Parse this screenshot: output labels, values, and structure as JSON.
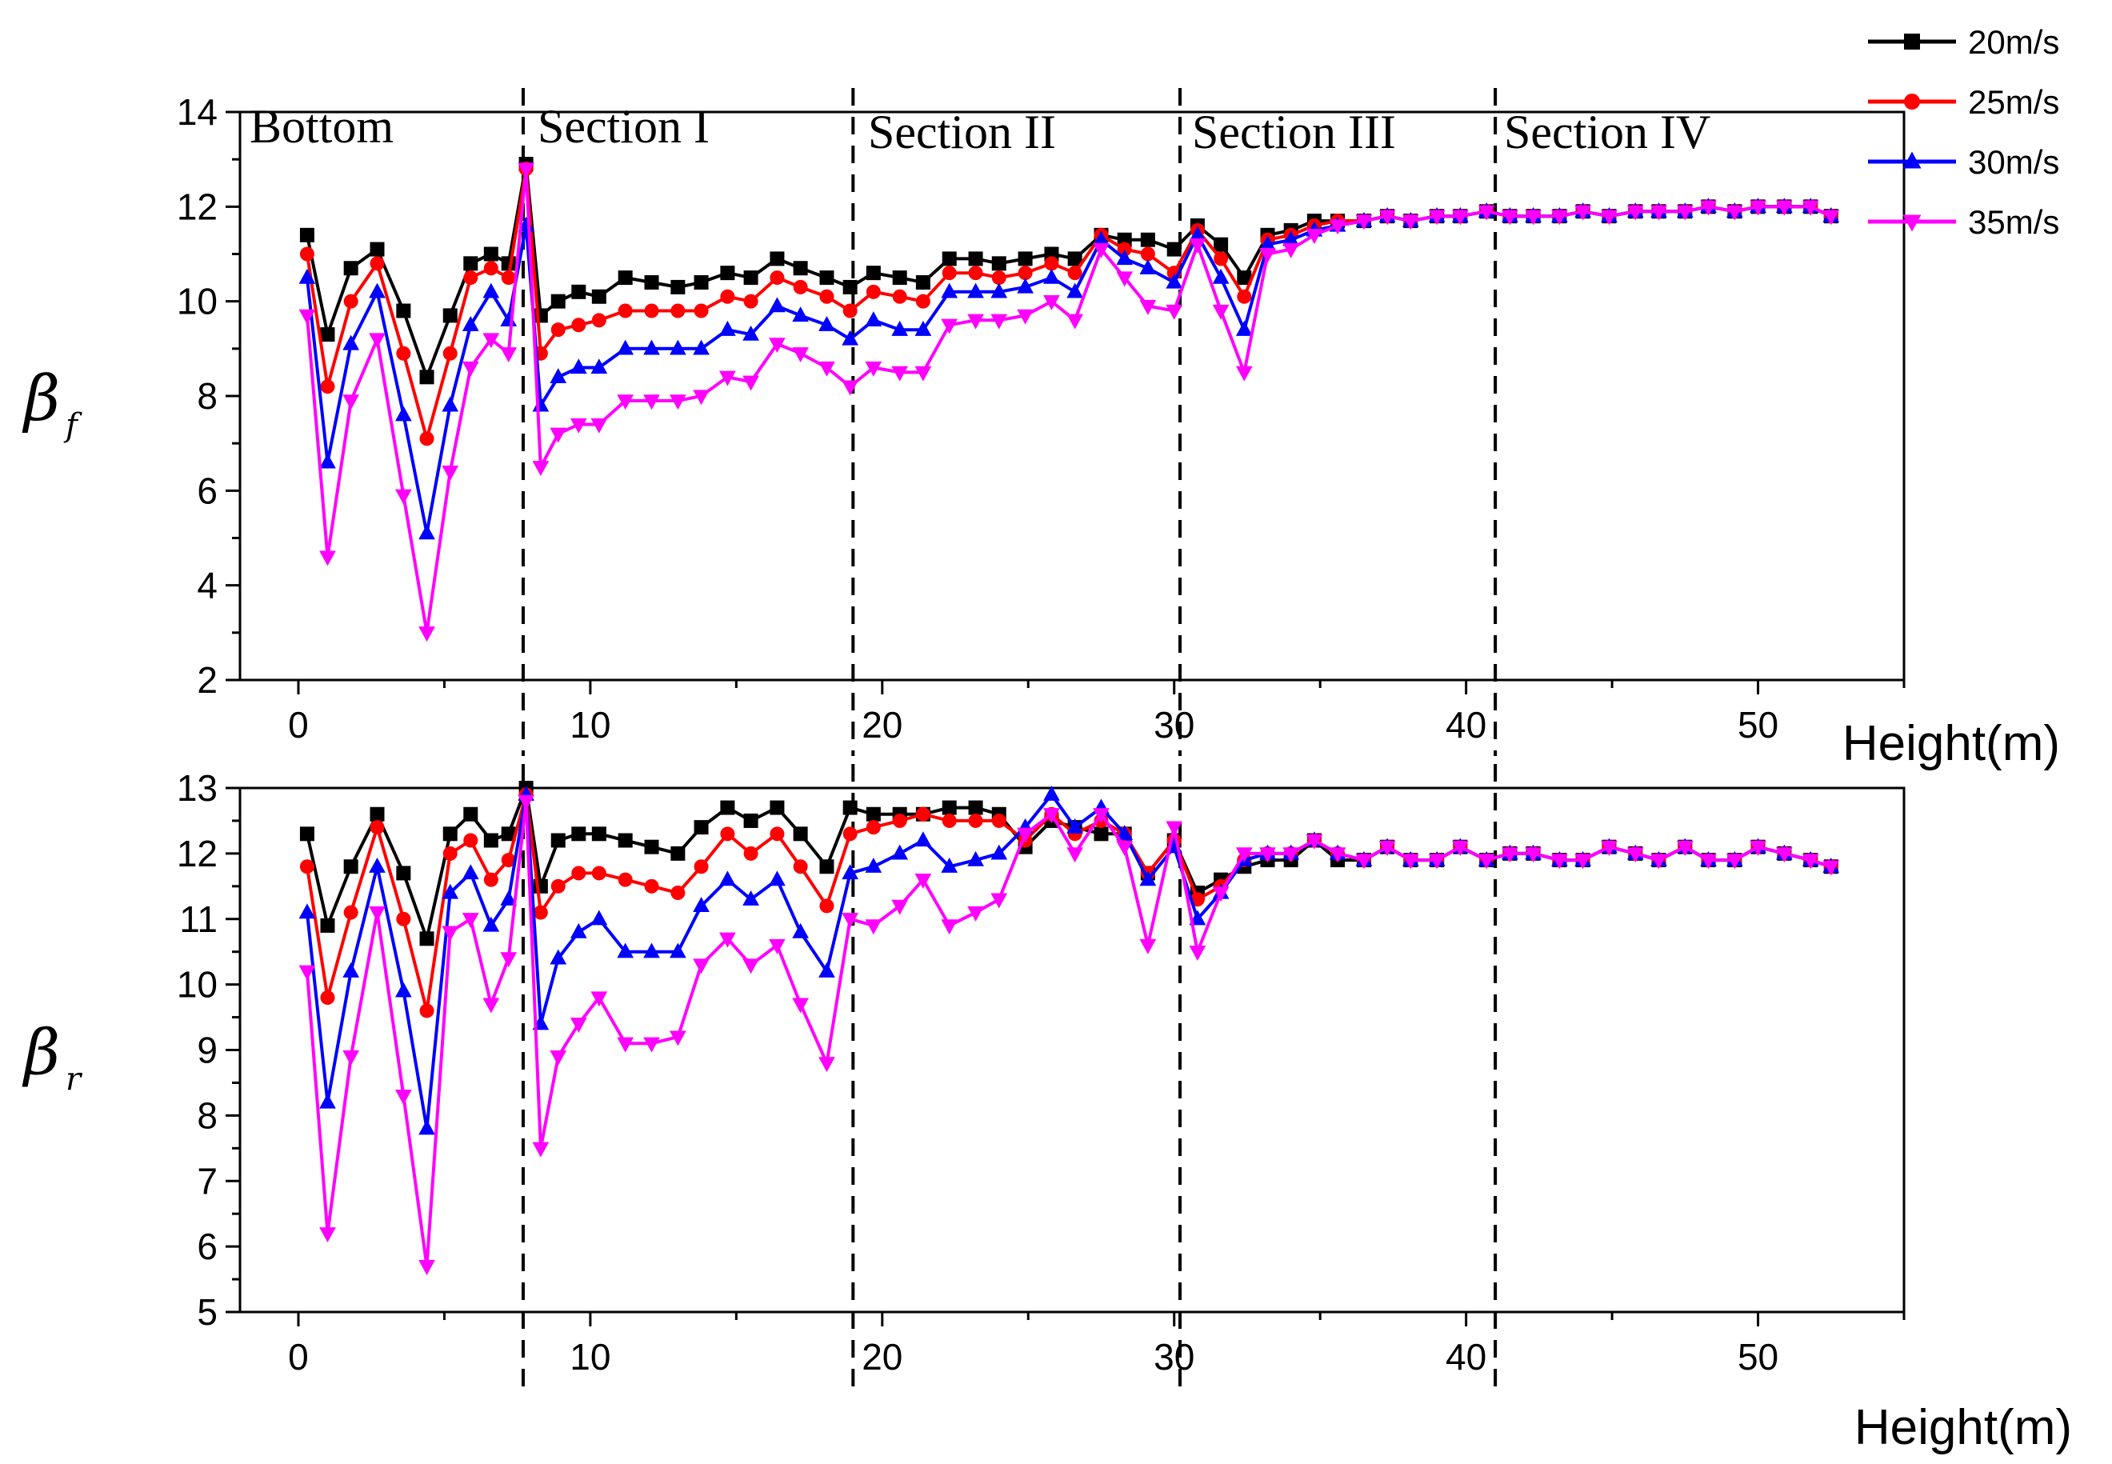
{
  "legend": {
    "position": "top-right",
    "entries": [
      {
        "label": "20m/s",
        "color": "#000000",
        "marker": "square"
      },
      {
        "label": "25m/s",
        "color": "#ff0000",
        "marker": "circle"
      },
      {
        "label": "30m/s",
        "color": "#0000ff",
        "marker": "triangle-up"
      },
      {
        "label": "35m/s",
        "color": "#ff00ff",
        "marker": "triangle-down"
      }
    ]
  },
  "sections": {
    "labels": [
      "Bottom",
      "Section I",
      "Section II",
      "Section III",
      "Section IV"
    ],
    "boundaries_m": [
      7.7,
      19,
      30.2,
      41
    ]
  },
  "chart_data": [
    {
      "type": "line",
      "ylabel_symbol": "β",
      "ylabel_subscript": "f",
      "xlabel": "Height(m)",
      "xlim": [
        -2,
        55
      ],
      "ylim": [
        2,
        14
      ],
      "xticks": [
        0,
        10,
        20,
        30,
        40,
        50
      ],
      "yticks": [
        2,
        4,
        6,
        8,
        10,
        12,
        14
      ],
      "x": [
        0.3,
        1.0,
        1.8,
        2.7,
        3.6,
        4.4,
        5.2,
        5.9,
        6.6,
        7.2,
        7.8,
        8.3,
        8.9,
        9.6,
        10.3,
        11.2,
        12.1,
        13.0,
        13.8,
        14.7,
        15.5,
        16.4,
        17.2,
        18.1,
        18.9,
        19.7,
        20.6,
        21.4,
        22.3,
        23.2,
        24.0,
        24.9,
        25.8,
        26.6,
        27.5,
        28.3,
        29.1,
        30.0,
        30.8,
        31.6,
        32.4,
        33.2,
        34.0,
        34.8,
        35.6,
        36.5,
        37.3,
        38.1,
        39.0,
        39.8,
        40.7,
        41.5,
        42.3,
        43.2,
        44.0,
        44.9,
        45.8,
        46.6,
        47.5,
        48.3,
        49.2,
        50.0,
        50.9,
        51.8,
        52.5
      ],
      "series": [
        {
          "name": "20m/s",
          "values": [
            11.4,
            9.3,
            10.7,
            11.1,
            9.8,
            8.4,
            9.7,
            10.8,
            11.0,
            10.8,
            12.9,
            9.7,
            10.0,
            10.2,
            10.1,
            10.5,
            10.4,
            10.3,
            10.4,
            10.6,
            10.5,
            10.9,
            10.7,
            10.5,
            10.3,
            10.6,
            10.5,
            10.4,
            10.9,
            10.9,
            10.8,
            10.9,
            11.0,
            10.9,
            11.4,
            11.3,
            11.3,
            11.1,
            11.6,
            11.2,
            10.5,
            11.4,
            11.5,
            11.7,
            11.7,
            11.7,
            11.8,
            11.7,
            11.8,
            11.8,
            11.9,
            11.8,
            11.8,
            11.8,
            11.9,
            11.8,
            11.9,
            11.9,
            11.9,
            12.0,
            11.9,
            12.0,
            12.0,
            12.0,
            11.8
          ]
        },
        {
          "name": "25m/s",
          "values": [
            11.0,
            8.2,
            10.0,
            10.8,
            8.9,
            7.1,
            8.9,
            10.5,
            10.7,
            10.5,
            12.8,
            8.9,
            9.4,
            9.5,
            9.6,
            9.8,
            9.8,
            9.8,
            9.8,
            10.1,
            10.0,
            10.5,
            10.3,
            10.1,
            9.8,
            10.2,
            10.1,
            10.0,
            10.6,
            10.6,
            10.5,
            10.6,
            10.8,
            10.6,
            11.4,
            11.1,
            11.0,
            10.6,
            11.5,
            10.9,
            10.1,
            11.3,
            11.4,
            11.6,
            11.7,
            11.7,
            11.8,
            11.7,
            11.8,
            11.8,
            11.9,
            11.8,
            11.8,
            11.8,
            11.9,
            11.8,
            11.9,
            11.9,
            11.9,
            12.0,
            11.9,
            12.0,
            12.0,
            12.0,
            11.8
          ]
        },
        {
          "name": "30m/s",
          "values": [
            10.5,
            6.6,
            9.1,
            10.2,
            7.6,
            5.1,
            7.8,
            9.5,
            10.2,
            9.6,
            11.6,
            7.8,
            8.4,
            8.6,
            8.6,
            9.0,
            9.0,
            9.0,
            9.0,
            9.4,
            9.3,
            9.9,
            9.7,
            9.5,
            9.2,
            9.6,
            9.4,
            9.4,
            10.2,
            10.2,
            10.2,
            10.3,
            10.5,
            10.2,
            11.3,
            10.9,
            10.7,
            10.4,
            11.4,
            10.5,
            9.4,
            11.2,
            11.3,
            11.5,
            11.6,
            11.7,
            11.8,
            11.7,
            11.8,
            11.8,
            11.9,
            11.8,
            11.8,
            11.8,
            11.9,
            11.8,
            11.9,
            11.9,
            11.9,
            12.0,
            11.9,
            12.0,
            12.0,
            12.0,
            11.8
          ]
        },
        {
          "name": "35m/s",
          "values": [
            9.7,
            4.6,
            7.9,
            9.2,
            5.9,
            3.0,
            6.4,
            8.6,
            9.2,
            8.9,
            12.8,
            6.5,
            7.2,
            7.4,
            7.4,
            7.9,
            7.9,
            7.9,
            8.0,
            8.4,
            8.3,
            9.1,
            8.9,
            8.6,
            8.2,
            8.6,
            8.5,
            8.5,
            9.5,
            9.6,
            9.6,
            9.7,
            10.0,
            9.6,
            11.1,
            10.5,
            9.9,
            9.8,
            11.2,
            9.8,
            8.5,
            11.0,
            11.1,
            11.4,
            11.6,
            11.7,
            11.8,
            11.7,
            11.8,
            11.8,
            11.9,
            11.8,
            11.8,
            11.8,
            11.9,
            11.8,
            11.9,
            11.9,
            11.9,
            12.0,
            11.9,
            12.0,
            12.0,
            12.0,
            11.8
          ]
        }
      ]
    },
    {
      "type": "line",
      "ylabel_symbol": "β",
      "ylabel_subscript": "r",
      "xlabel": "Height(m)",
      "xlim": [
        -2,
        55
      ],
      "ylim": [
        5,
        13
      ],
      "xticks": [
        0,
        10,
        20,
        30,
        40,
        50
      ],
      "yticks": [
        5,
        6,
        7,
        8,
        9,
        10,
        11,
        12,
        13
      ],
      "x": [
        0.3,
        1.0,
        1.8,
        2.7,
        3.6,
        4.4,
        5.2,
        5.9,
        6.6,
        7.2,
        7.8,
        8.3,
        8.9,
        9.6,
        10.3,
        11.2,
        12.1,
        13.0,
        13.8,
        14.7,
        15.5,
        16.4,
        17.2,
        18.1,
        18.9,
        19.7,
        20.6,
        21.4,
        22.3,
        23.2,
        24.0,
        24.9,
        25.8,
        26.6,
        27.5,
        28.3,
        29.1,
        30.0,
        30.8,
        31.6,
        32.4,
        33.2,
        34.0,
        34.8,
        35.6,
        36.5,
        37.3,
        38.1,
        39.0,
        39.8,
        40.7,
        41.5,
        42.3,
        43.2,
        44.0,
        44.9,
        45.8,
        46.6,
        47.5,
        48.3,
        49.2,
        50.0,
        50.9,
        51.8,
        52.5
      ],
      "series": [
        {
          "name": "20m/s",
          "values": [
            12.3,
            10.9,
            11.8,
            12.6,
            11.7,
            10.7,
            12.3,
            12.6,
            12.2,
            12.3,
            13.0,
            11.5,
            12.2,
            12.3,
            12.3,
            12.2,
            12.1,
            12.0,
            12.4,
            12.7,
            12.5,
            12.7,
            12.3,
            11.8,
            12.7,
            12.6,
            12.6,
            12.6,
            12.7,
            12.7,
            12.6,
            12.1,
            12.5,
            12.4,
            12.3,
            12.3,
            11.7,
            12.2,
            11.4,
            11.6,
            11.8,
            11.9,
            11.9,
            12.2,
            11.9,
            11.9,
            12.1,
            11.9,
            11.9,
            12.1,
            11.9,
            12.0,
            12.0,
            11.9,
            11.9,
            12.1,
            12.0,
            11.9,
            12.1,
            11.9,
            11.9,
            12.1,
            12.0,
            11.9,
            11.8
          ]
        },
        {
          "name": "25m/s",
          "values": [
            11.8,
            9.8,
            11.1,
            12.4,
            11.0,
            9.6,
            12.0,
            12.2,
            11.6,
            11.9,
            12.9,
            11.1,
            11.5,
            11.7,
            11.7,
            11.6,
            11.5,
            11.4,
            11.8,
            12.3,
            12.0,
            12.3,
            11.8,
            11.2,
            12.3,
            12.4,
            12.5,
            12.6,
            12.5,
            12.5,
            12.5,
            12.2,
            12.6,
            12.3,
            12.5,
            12.3,
            11.7,
            12.2,
            11.3,
            11.5,
            11.9,
            12.0,
            12.0,
            12.2,
            12.0,
            11.9,
            12.1,
            11.9,
            11.9,
            12.1,
            11.9,
            12.0,
            12.0,
            11.9,
            11.9,
            12.1,
            12.0,
            11.9,
            12.1,
            11.9,
            11.9,
            12.1,
            12.0,
            11.9,
            11.8
          ]
        },
        {
          "name": "30m/s",
          "values": [
            11.1,
            8.2,
            10.2,
            11.8,
            9.9,
            7.8,
            11.4,
            11.7,
            10.9,
            11.3,
            12.9,
            9.4,
            10.4,
            10.8,
            11.0,
            10.5,
            10.5,
            10.5,
            11.2,
            11.6,
            11.3,
            11.6,
            10.8,
            10.2,
            11.7,
            11.8,
            12.0,
            12.2,
            11.8,
            11.9,
            12.0,
            12.4,
            12.9,
            12.4,
            12.7,
            12.3,
            11.6,
            12.1,
            11.0,
            11.4,
            11.9,
            12.0,
            12.0,
            12.2,
            12.0,
            11.9,
            12.1,
            11.9,
            11.9,
            12.1,
            11.9,
            12.0,
            12.0,
            11.9,
            11.9,
            12.1,
            12.0,
            11.9,
            12.1,
            11.9,
            11.9,
            12.1,
            12.0,
            11.9,
            11.8
          ]
        },
        {
          "name": "35m/s",
          "values": [
            10.2,
            6.2,
            8.9,
            11.1,
            8.3,
            5.7,
            10.8,
            11.0,
            9.7,
            10.4,
            12.8,
            7.5,
            8.9,
            9.4,
            9.8,
            9.1,
            9.1,
            9.2,
            10.3,
            10.7,
            10.3,
            10.6,
            9.7,
            8.8,
            11.0,
            10.9,
            11.2,
            11.6,
            10.9,
            11.1,
            11.3,
            12.3,
            12.6,
            12.0,
            12.6,
            12.1,
            10.6,
            12.4,
            10.5,
            11.4,
            12.0,
            12.0,
            12.0,
            12.2,
            12.0,
            11.9,
            12.1,
            11.9,
            11.9,
            12.1,
            11.9,
            12.0,
            12.0,
            11.9,
            11.9,
            12.1,
            12.0,
            11.9,
            12.1,
            11.9,
            11.9,
            12.1,
            12.0,
            11.9,
            11.8
          ]
        }
      ]
    }
  ]
}
